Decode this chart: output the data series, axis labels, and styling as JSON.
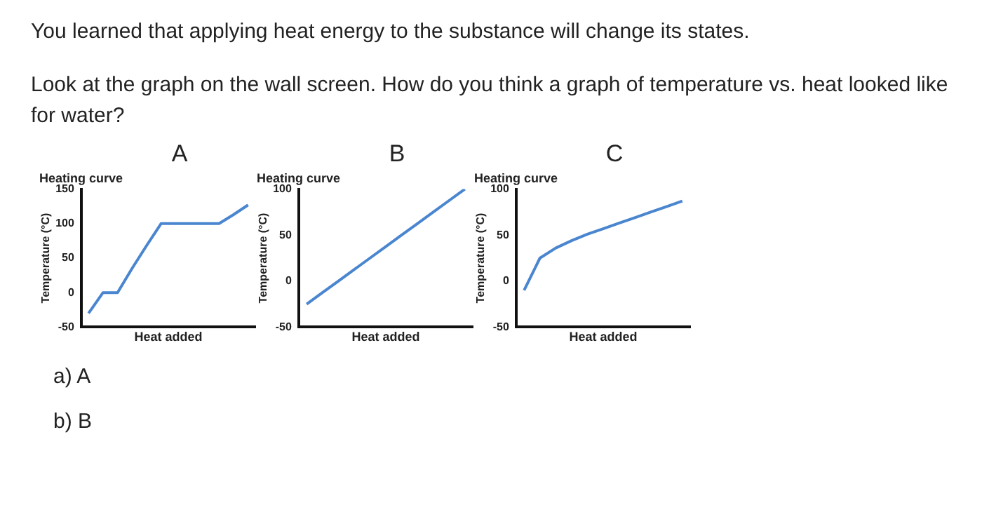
{
  "chart_data": [
    {
      "type": "line",
      "title": "A",
      "subtitle": "Heating curve",
      "xlabel": "Heat added",
      "ylabel": "Temperature (°C)",
      "annotations": [
        "You learned that applying heat energy to the substance will change its states.",
        "Look at the graph on the wall screen. How do you think a graph of temperature vs. heat looked like for water?"
      ],
      "categories": [
        null,
        null,
        null,
        null,
        null,
        null,
        null,
        null,
        null,
        null,
        null,
        null
      ],
      "series": [
        {
          "color": "#4a86d0",
          "values": [
            -30,
            0,
            0,
            35,
            68,
            100,
            100,
            100,
            100,
            100,
            113,
            127
          ]
        }
      ],
      "ylim": [
        -50,
        150
      ],
      "yticks": [
        -50,
        0,
        50,
        100,
        150
      ],
      "grid": false,
      "legend": false,
      "marker": "none"
    },
    {
      "type": "line",
      "title": "B",
      "subtitle": "Heating curve",
      "xlabel": "Heat added",
      "ylabel": "Temperature (°C)",
      "categories": [
        null,
        null,
        null,
        null,
        null,
        null,
        null,
        null,
        null,
        null,
        null
      ],
      "series": [
        {
          "color": "#4a86d0",
          "values": [
            -25,
            -12.5,
            0,
            12.5,
            25,
            37.5,
            50,
            62.5,
            75,
            87.5,
            100
          ]
        }
      ],
      "ylim": [
        -50,
        100
      ],
      "yticks": [
        -50,
        0,
        50,
        100
      ],
      "grid": false,
      "legend": false,
      "marker": "none"
    },
    {
      "type": "line",
      "title": "C",
      "subtitle": "Heating curve",
      "xlabel": "Heat added",
      "ylabel": "Temperature (°C)",
      "annotations": [
        "a) A",
        "b) B"
      ],
      "categories": [
        null,
        null,
        null,
        null,
        null,
        null,
        null,
        null,
        null,
        null,
        null
      ],
      "series": [
        {
          "color": "#4a86d0",
          "values": [
            -10,
            25,
            36,
            44,
            51,
            57,
            63,
            69,
            75,
            81,
            87
          ]
        }
      ],
      "ylim": [
        -50,
        100
      ],
      "yticks": [
        -50,
        0,
        50,
        100
      ],
      "grid": false,
      "legend": false,
      "marker": "none"
    }
  ]
}
